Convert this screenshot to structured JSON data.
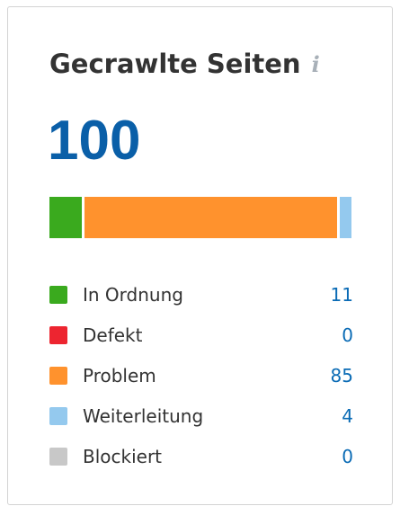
{
  "widget": {
    "title": "Gecrawlte Seiten",
    "info_icon": "i",
    "total": "100"
  },
  "colors": {
    "ok": "#3aaa1e",
    "broken": "#ed2530",
    "problem": "#ff922d",
    "redirect": "#94c9ee",
    "blocked": "#c8c8c8",
    "value_link": "#0a6bb5",
    "total": "#0a5fa8"
  },
  "legend": [
    {
      "key": "ok",
      "label": "In Ordnung",
      "value": "11",
      "count": 11
    },
    {
      "key": "broken",
      "label": "Defekt",
      "value": "0",
      "count": 0
    },
    {
      "key": "problem",
      "label": "Problem",
      "value": "85",
      "count": 85
    },
    {
      "key": "redirect",
      "label": "Weiterleitung",
      "value": "4",
      "count": 4
    },
    {
      "key": "blocked",
      "label": "Blockiert",
      "value": "0",
      "count": 0
    }
  ]
}
